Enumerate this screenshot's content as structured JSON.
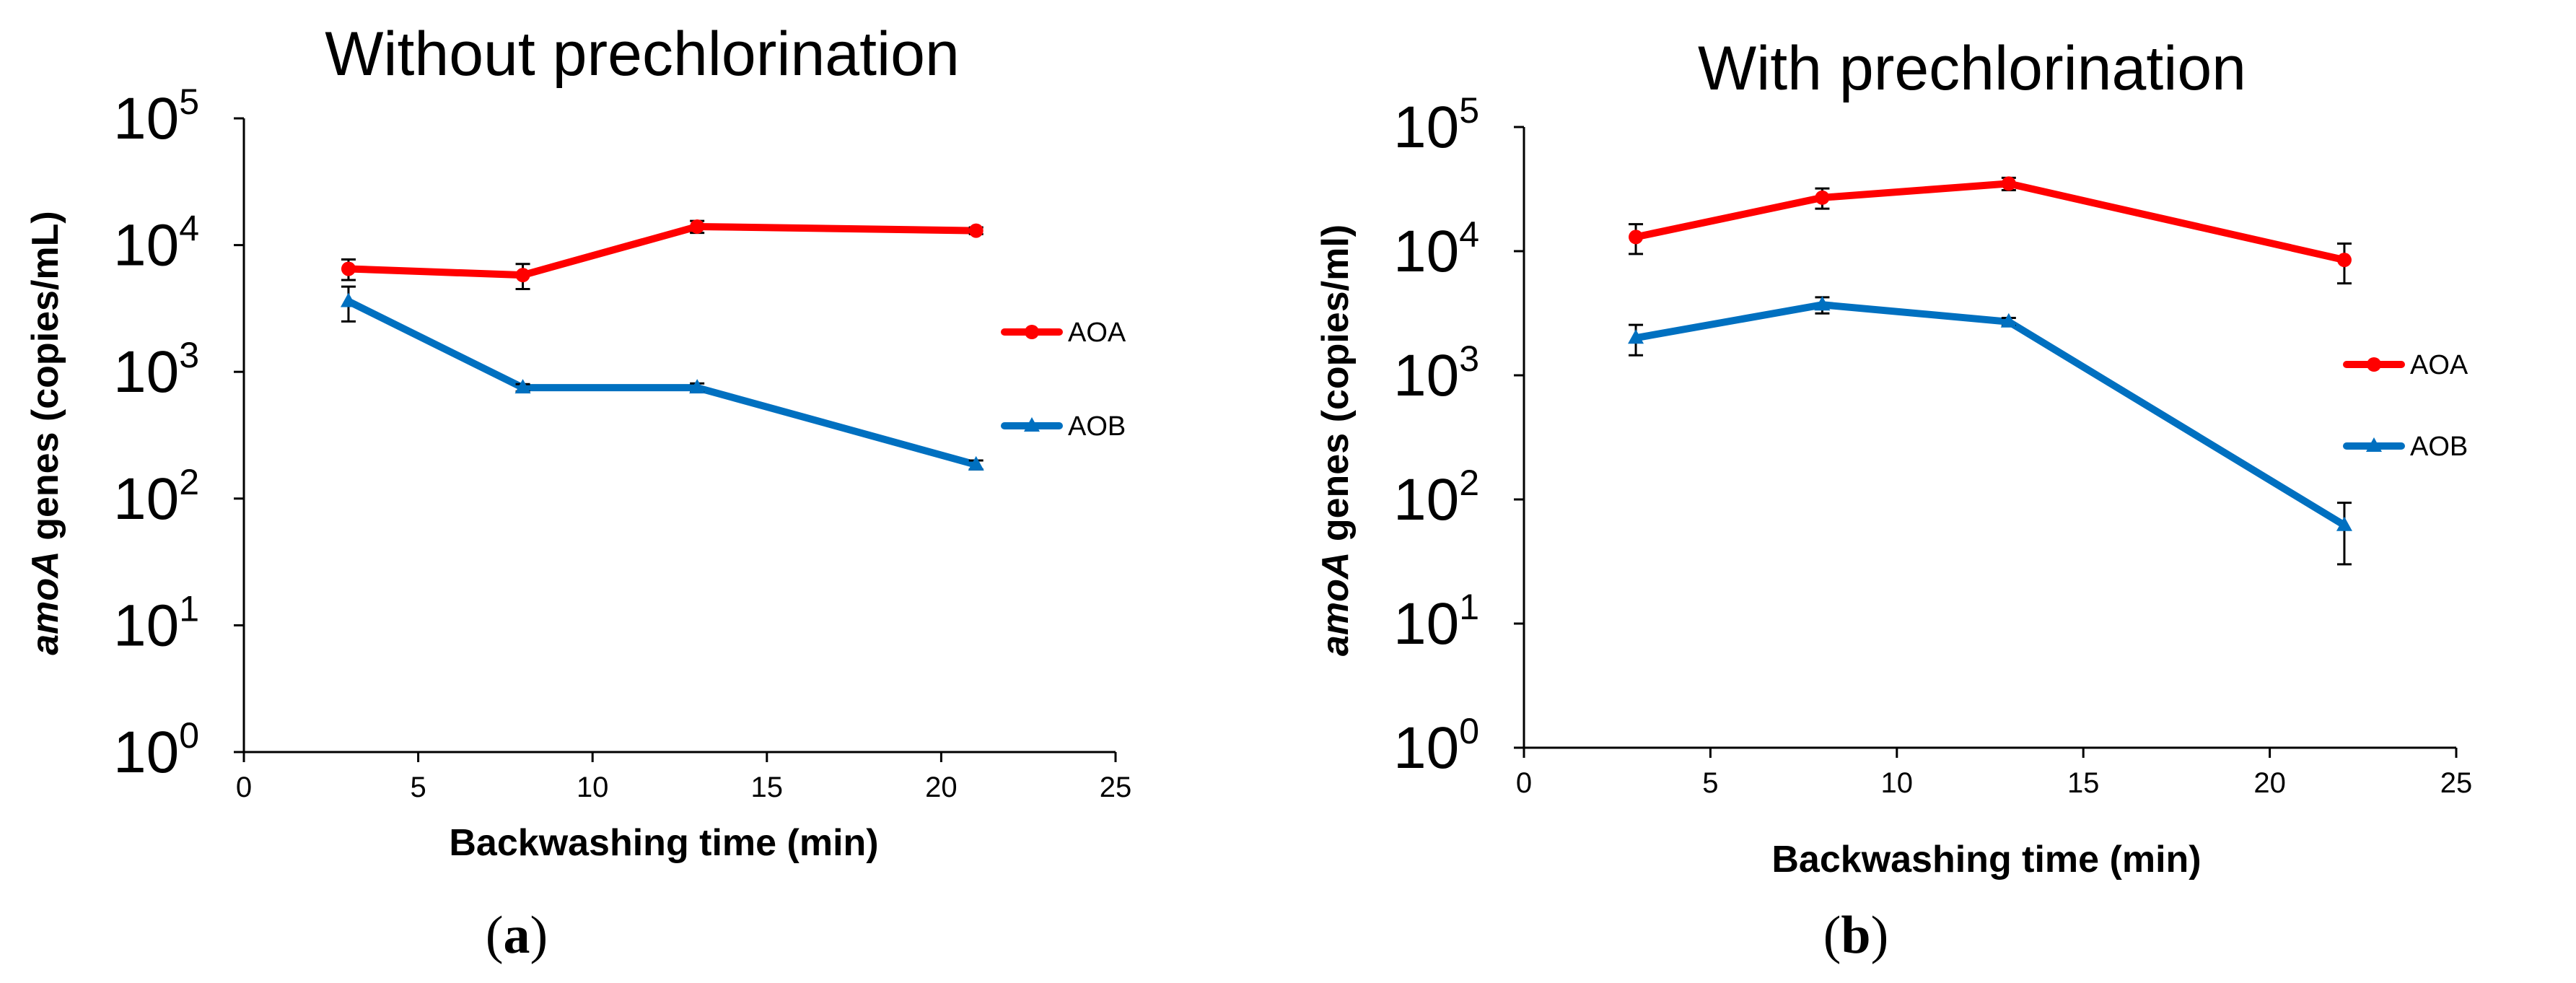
{
  "colors": {
    "AOA": "#ff0000",
    "AOB": "#0070c0",
    "axis": "#000000",
    "errorbar": "#000000"
  },
  "chart_data": [
    {
      "type": "line",
      "title": "Without prechlorination",
      "panel_label": "(a)",
      "panel_label_parts": [
        "(",
        "a",
        ")"
      ],
      "xlabel": "Backwashing time (min)",
      "ylabel_italic": "amoA",
      "ylabel_rest": " genes (copies/mL)",
      "xlim": [
        0,
        25
      ],
      "xticks": [
        0,
        5,
        10,
        15,
        20,
        25
      ],
      "ylim": [
        1,
        100000
      ],
      "yscale": "log",
      "yticks": [
        {
          "base": "10",
          "exp": "0"
        },
        {
          "base": "10",
          "exp": "1"
        },
        {
          "base": "10",
          "exp": "2"
        },
        {
          "base": "10",
          "exp": "3"
        },
        {
          "base": "10",
          "exp": "4"
        },
        {
          "base": "10",
          "exp": "5"
        }
      ],
      "legend_position": "right",
      "series": [
        {
          "name": "AOA",
          "marker": "circle",
          "x": [
            3,
            8,
            13,
            21
          ],
          "y": [
            6500,
            5800,
            14000,
            13000
          ],
          "err": [
            1200,
            1300,
            1500,
            800
          ]
        },
        {
          "name": "AOB",
          "marker": "triangle",
          "x": [
            3,
            8,
            13,
            21
          ],
          "y": [
            3600,
            750,
            750,
            185
          ],
          "err": [
            1100,
            50,
            60,
            15
          ]
        }
      ]
    },
    {
      "type": "line",
      "title": "With prechlorination",
      "panel_label": "(b)",
      "panel_label_parts": [
        "(",
        "b",
        ")"
      ],
      "xlabel": "Backwashing time (min)",
      "ylabel_italic": "amoA",
      "ylabel_rest": " genes (copies/ml)",
      "xlim": [
        0,
        25
      ],
      "xticks": [
        0,
        5,
        10,
        15,
        20,
        25
      ],
      "ylim": [
        1,
        100000
      ],
      "yscale": "log",
      "yticks": [
        {
          "base": "10",
          "exp": "0"
        },
        {
          "base": "10",
          "exp": "1"
        },
        {
          "base": "10",
          "exp": "2"
        },
        {
          "base": "10",
          "exp": "3"
        },
        {
          "base": "10",
          "exp": "4"
        },
        {
          "base": "10",
          "exp": "5"
        }
      ],
      "legend_position": "right",
      "series": [
        {
          "name": "AOA",
          "marker": "circle",
          "x": [
            3,
            8,
            13,
            22
          ],
          "y": [
            13000,
            27000,
            35000,
            8500
          ],
          "err": [
            3500,
            5000,
            4000,
            3000
          ]
        },
        {
          "name": "AOB",
          "marker": "triangle",
          "x": [
            3,
            8,
            13,
            22
          ],
          "y": [
            2000,
            3700,
            2700,
            62
          ],
          "err": [
            550,
            550,
            200,
            32
          ]
        }
      ]
    }
  ]
}
